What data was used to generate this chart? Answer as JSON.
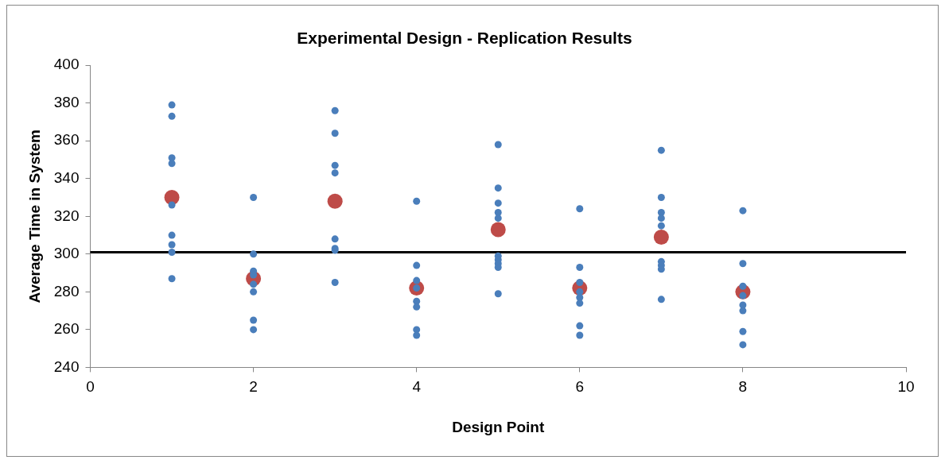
{
  "chart_data": {
    "type": "scatter",
    "title": "Experimental Design - Replication Results",
    "xlabel": "Design Point",
    "ylabel": "Average Time in System",
    "xlim": [
      0,
      10
    ],
    "xticks": [
      0,
      2,
      4,
      6,
      8,
      10
    ],
    "ylim": [
      240,
      400
    ],
    "yticks": [
      240,
      260,
      280,
      300,
      320,
      340,
      360,
      380,
      400
    ],
    "grid": false,
    "legend": false,
    "marker": "circle",
    "series": [
      {
        "color": "#4a7ebb",
        "x": [
          1,
          1,
          1,
          1,
          1,
          1,
          1,
          1,
          1,
          2,
          2,
          2,
          2,
          2,
          2,
          2,
          2,
          3,
          3,
          3,
          3,
          3,
          3,
          3,
          3,
          4,
          4,
          4,
          4,
          4,
          4,
          4,
          4,
          5,
          5,
          5,
          5,
          5,
          5,
          5,
          5,
          5,
          5,
          6,
          6,
          6,
          6,
          6,
          6,
          6,
          6,
          7,
          7,
          7,
          7,
          7,
          7,
          7,
          7,
          7,
          8,
          8,
          8,
          8,
          8,
          8,
          8,
          8
        ],
        "values": [
          379,
          373,
          351,
          348,
          326,
          310,
          305,
          301,
          287,
          330,
          300,
          291,
          289,
          284,
          280,
          265,
          260,
          376,
          364,
          347,
          343,
          308,
          303,
          302,
          285,
          328,
          294,
          286,
          282,
          275,
          272,
          260,
          257,
          358,
          335,
          327,
          322,
          319,
          299,
          297,
          295,
          293,
          279,
          324,
          293,
          285,
          280,
          277,
          274,
          262,
          257,
          355,
          330,
          322,
          319,
          315,
          296,
          294,
          292,
          276,
          323,
          295,
          283,
          278,
          273,
          270,
          259,
          252
        ]
      },
      {
        "color": "#be4b48",
        "x": [
          1,
          2,
          3,
          4,
          5,
          6,
          7,
          8
        ],
        "values": [
          330,
          287,
          328,
          282,
          313,
          282,
          309,
          280
        ]
      }
    ],
    "ref_lines": [
      {
        "axis": "y",
        "value": 301,
        "color": "#000000",
        "line_style": "solid"
      }
    ]
  }
}
